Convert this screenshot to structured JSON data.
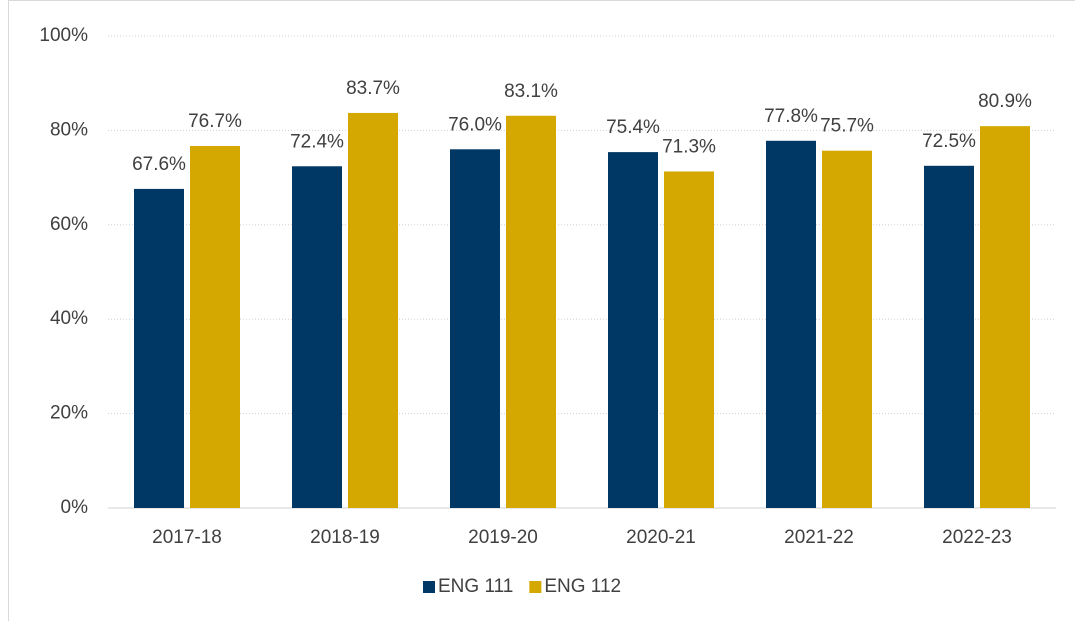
{
  "chart_data": {
    "type": "bar",
    "categories": [
      "2017-18",
      "2018-19",
      "2019-20",
      "2020-21",
      "2021-22",
      "2022-23"
    ],
    "series": [
      {
        "name": "ENG 111",
        "color": "#003865",
        "values": [
          67.6,
          72.4,
          76.0,
          75.4,
          77.8,
          72.5
        ],
        "value_labels": [
          "67.6%",
          "72.4%",
          "76.0%",
          "75.4%",
          "77.8%",
          "72.5%"
        ]
      },
      {
        "name": "ENG 112",
        "color": "#d4a800",
        "values": [
          76.7,
          83.7,
          83.1,
          71.3,
          75.7,
          80.9
        ],
        "value_labels": [
          "76.7%",
          "83.7%",
          "83.1%",
          "71.3%",
          "75.7%",
          "80.9%"
        ]
      }
    ],
    "ylim": [
      0,
      100
    ],
    "yticks": [
      {
        "value": 0,
        "label": "0%"
      },
      {
        "value": 20,
        "label": "20%"
      },
      {
        "value": 40,
        "label": "40%"
      },
      {
        "value": 60,
        "label": "60%"
      },
      {
        "value": 80,
        "label": "80%"
      },
      {
        "value": 100,
        "label": "100%"
      }
    ],
    "grid": true,
    "legend": "bottom"
  }
}
